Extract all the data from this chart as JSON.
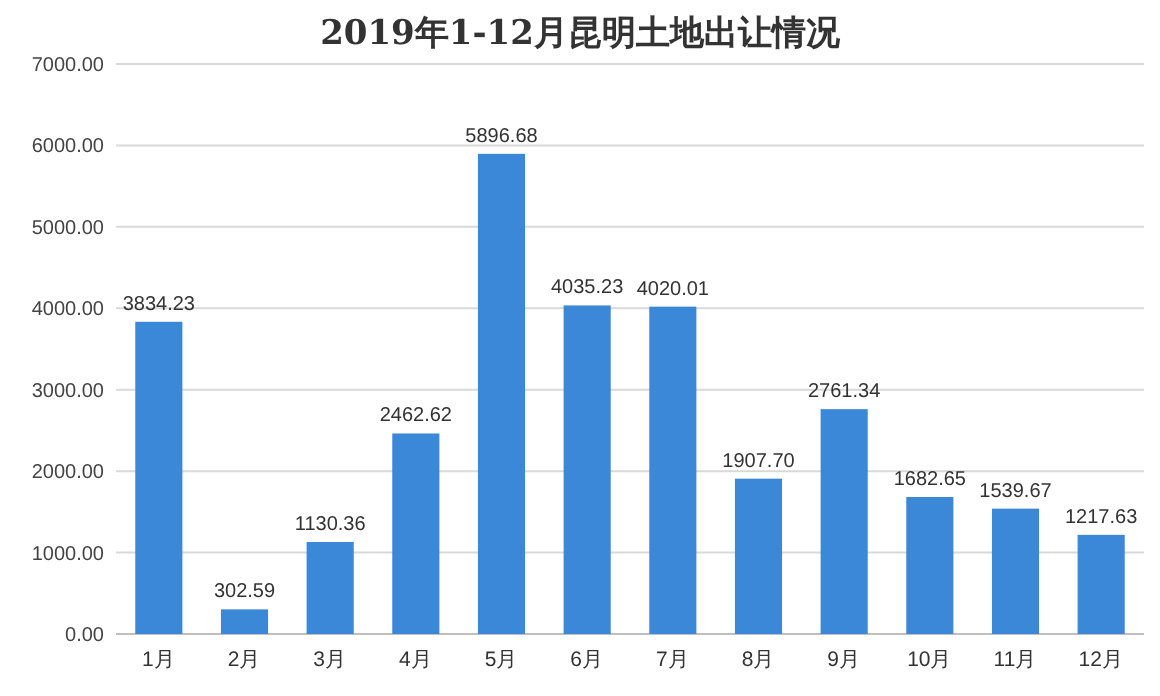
{
  "chart_data": {
    "type": "bar",
    "title": "2019年1-12月昆明土地出让情况",
    "categories": [
      "1月",
      "2月",
      "3月",
      "4月",
      "5月",
      "6月",
      "7月",
      "8月",
      "9月",
      "10月",
      "11月",
      "12月"
    ],
    "values": [
      3834.23,
      302.59,
      1130.36,
      2462.62,
      5896.68,
      4035.23,
      4020.01,
      1907.7,
      2761.34,
      1682.65,
      1539.67,
      1217.63
    ],
    "value_labels": [
      "3834.23",
      "302.59",
      "1130.36",
      "2462.62",
      "5896.68",
      "4035.23",
      "4020.01",
      "1907.70",
      "2761.34",
      "1682.65",
      "1539.67",
      "1217.63"
    ],
    "color": "#3b87d8",
    "ylim": [
      0,
      7000
    ],
    "yticks": [
      {
        "value": 0,
        "label": "0.00"
      },
      {
        "value": 1000,
        "label": "1000.00"
      },
      {
        "value": 2000,
        "label": "2000.00"
      },
      {
        "value": 3000,
        "label": "3000.00"
      },
      {
        "value": 4000,
        "label": "4000.00"
      },
      {
        "value": 5000,
        "label": "5000.00"
      },
      {
        "value": 6000,
        "label": "6000.00"
      },
      {
        "value": 7000,
        "label": "7000.00"
      }
    ],
    "grid": "y"
  }
}
